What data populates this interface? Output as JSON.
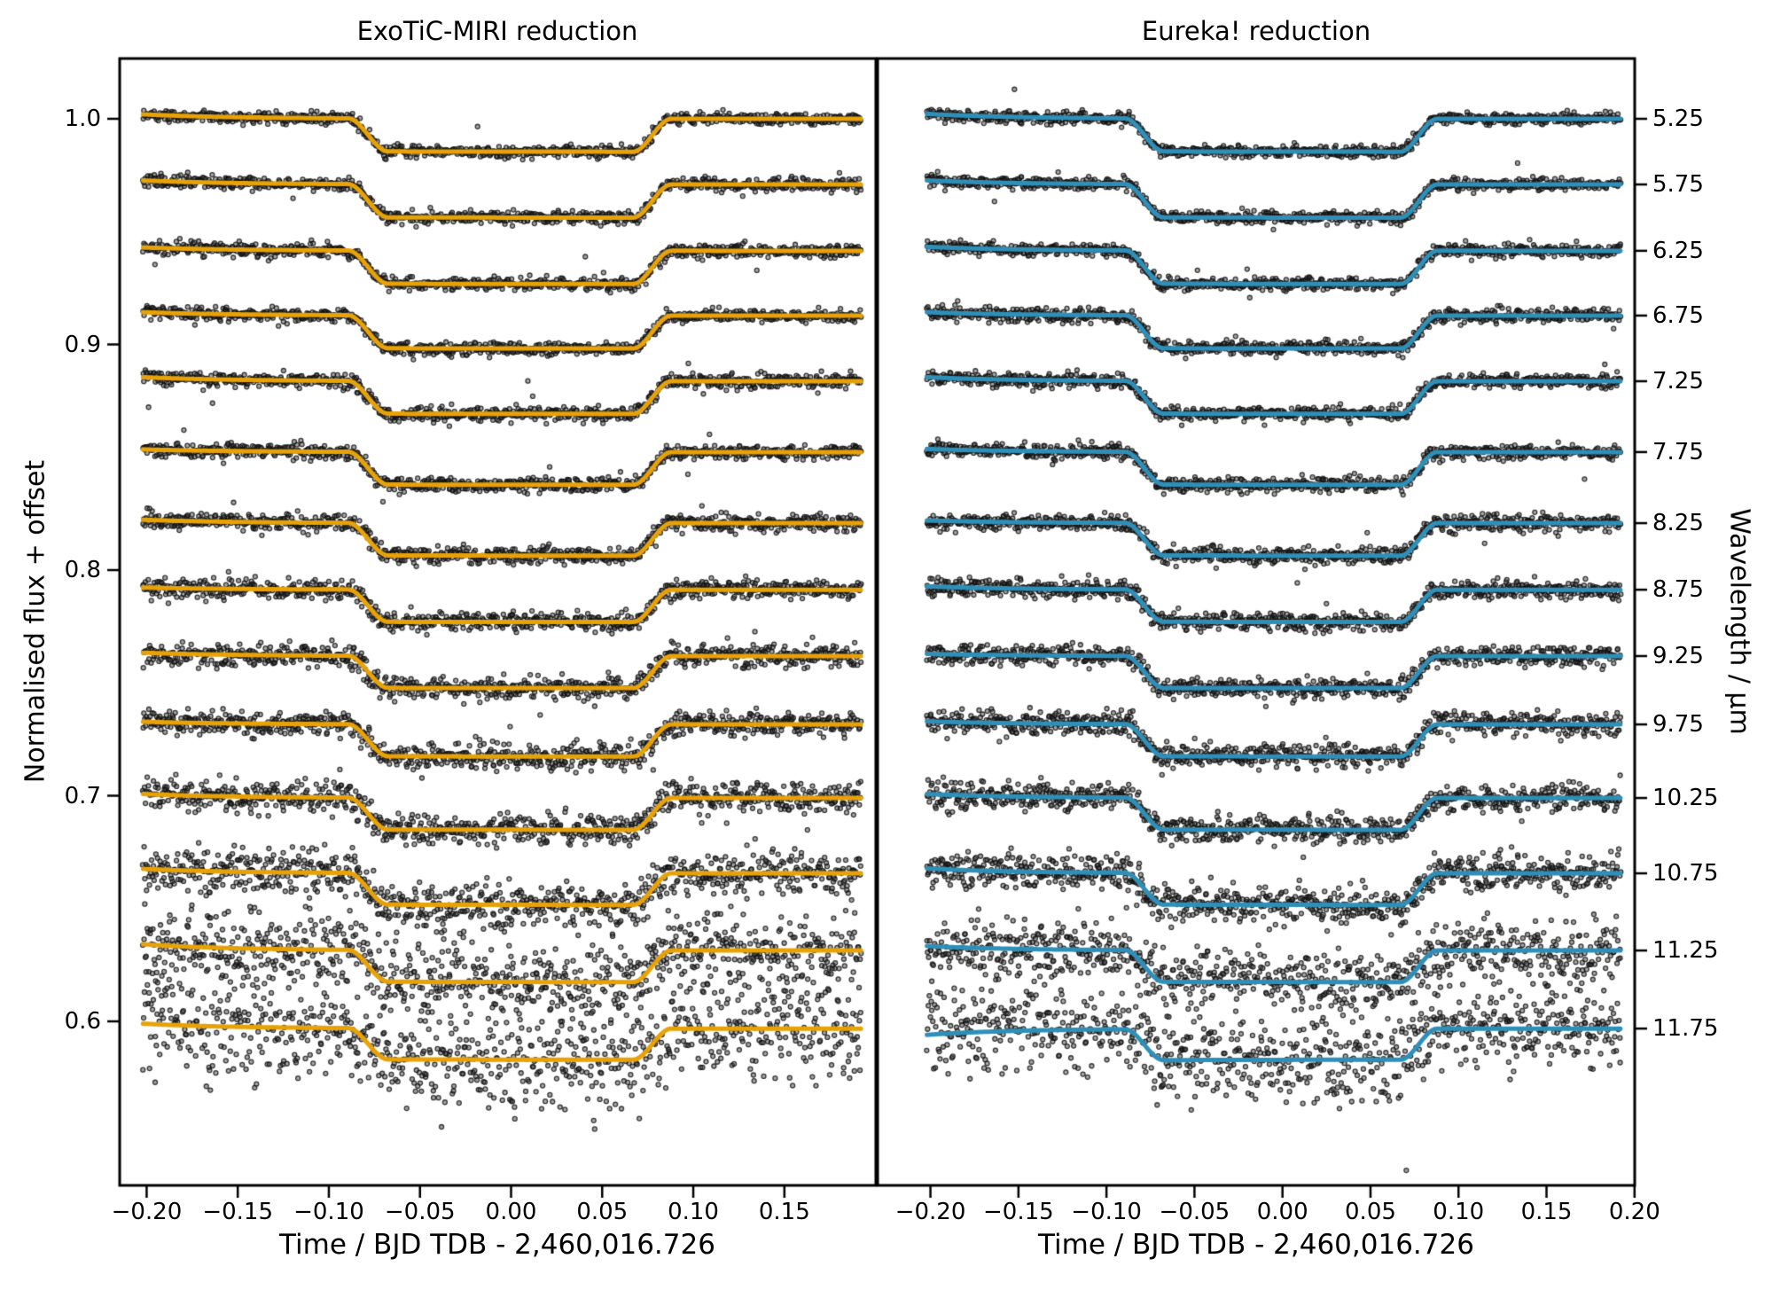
{
  "figure": {
    "left_ylabel": "Normalised flux + offset",
    "right_ylabel": "Wavelength / μm",
    "xlabel": "Time / BJD TDB - 2,460,016.726"
  },
  "chart_data": {
    "type": "scatter",
    "description": "JWST MIRI spectroscopic transit light curves in 14 wavelength channels, vertically offset; black points are data, coloured curves are transit model fits; two independent reductions shown side by side.",
    "grid": false,
    "legend": "none",
    "y_axis_left": {
      "label": "Normalised flux + offset",
      "tick_labels": [
        "1.0",
        "0.9",
        "0.8",
        "0.7",
        "0.6"
      ],
      "tick_values": [
        1.0,
        0.9,
        0.8,
        0.7,
        0.6
      ],
      "lim": [
        0.527,
        1.027
      ]
    },
    "y_axis_right": {
      "label": "Wavelength / μm"
    },
    "x_axis": {
      "label": "Time / BJD TDB - 2,460,016.726"
    },
    "transit_contacts": {
      "t1": -0.0895,
      "t2": -0.0675,
      "t3": 0.067,
      "t4": 0.088
    },
    "time_range": [
      -0.202,
      0.192
    ],
    "points_per_curve": 850,
    "marker_color": "#1c1c1c",
    "panels": [
      {
        "id": "exotic-miri",
        "title": "ExoTiC-MIRI reduction",
        "model_color": "#E8A206",
        "xlim": [
          -0.2148,
          0.2002
        ],
        "x_tick_labels": [
          "−0.20",
          "−0.15",
          "−0.10",
          "−0.05",
          "0.00",
          "0.05",
          "0.10",
          "0.15"
        ],
        "x_tick_values": [
          -0.2,
          -0.15,
          -0.1,
          -0.05,
          0.0,
          0.05,
          0.1,
          0.15
        ],
        "noise_sigma": [
          0.0013,
          0.0014,
          0.0014,
          0.0015,
          0.0016,
          0.0017,
          0.0019,
          0.0021,
          0.0024,
          0.0028,
          0.0035,
          0.005,
          0.0085,
          0.0108
        ],
        "ramp_amp": [
          0.002,
          0.0018,
          0.0015,
          0.0015,
          0.0018,
          0.0012,
          0.0015,
          0.001,
          0.0015,
          0.0012,
          0.0018,
          0.002,
          0.0028,
          0.0022
        ],
        "seed": 12345
      },
      {
        "id": "eureka",
        "title": "Eureka! reduction",
        "model_color": "#2E90B9",
        "xlim": [
          -0.23,
          0.2001
        ],
        "x_tick_labels": [
          "−0.20",
          "−0.15",
          "−0.10",
          "−0.05",
          "0.00",
          "0.05",
          "0.10",
          "0.15",
          "0.20"
        ],
        "x_tick_values": [
          -0.2,
          -0.15,
          -0.1,
          -0.05,
          0.0,
          0.05,
          0.1,
          0.15,
          0.2
        ],
        "noise_sigma": [
          0.0013,
          0.0013,
          0.0014,
          0.0015,
          0.0015,
          0.0016,
          0.0018,
          0.002,
          0.0022,
          0.0026,
          0.003,
          0.004,
          0.0068,
          0.0088
        ],
        "ramp_amp": [
          0.0022,
          0.0018,
          0.0018,
          0.0015,
          0.0018,
          0.0014,
          0.0012,
          0.0015,
          0.001,
          0.0014,
          0.0018,
          0.0022,
          0.002,
          -0.0028
        ],
        "seed": 54321
      }
    ],
    "series": [
      {
        "wavelength_um": "5.25",
        "baseline_flux": 1.0,
        "transit_depth": 0.0146
      },
      {
        "wavelength_um": "5.75",
        "baseline_flux": 0.9709,
        "transit_depth": 0.0147
      },
      {
        "wavelength_um": "6.25",
        "baseline_flux": 0.9415,
        "transit_depth": 0.0147
      },
      {
        "wavelength_um": "6.75",
        "baseline_flux": 0.9128,
        "transit_depth": 0.0146
      },
      {
        "wavelength_um": "7.25",
        "baseline_flux": 0.8837,
        "transit_depth": 0.0145
      },
      {
        "wavelength_um": "7.75",
        "baseline_flux": 0.8523,
        "transit_depth": 0.0145
      },
      {
        "wavelength_um": "8.25",
        "baseline_flux": 0.8208,
        "transit_depth": 0.0144
      },
      {
        "wavelength_um": "8.75",
        "baseline_flux": 0.7913,
        "transit_depth": 0.0143
      },
      {
        "wavelength_um": "9.25",
        "baseline_flux": 0.7619,
        "transit_depth": 0.0142
      },
      {
        "wavelength_um": "9.75",
        "baseline_flux": 0.7316,
        "transit_depth": 0.0142
      },
      {
        "wavelength_um": "10.25",
        "baseline_flux": 0.699,
        "transit_depth": 0.0141
      },
      {
        "wavelength_um": "10.75",
        "baseline_flux": 0.6656,
        "transit_depth": 0.014
      },
      {
        "wavelength_um": "11.25",
        "baseline_flux": 0.6314,
        "transit_depth": 0.014
      },
      {
        "wavelength_um": "11.75",
        "baseline_flux": 0.5968,
        "transit_depth": 0.0138
      }
    ]
  }
}
